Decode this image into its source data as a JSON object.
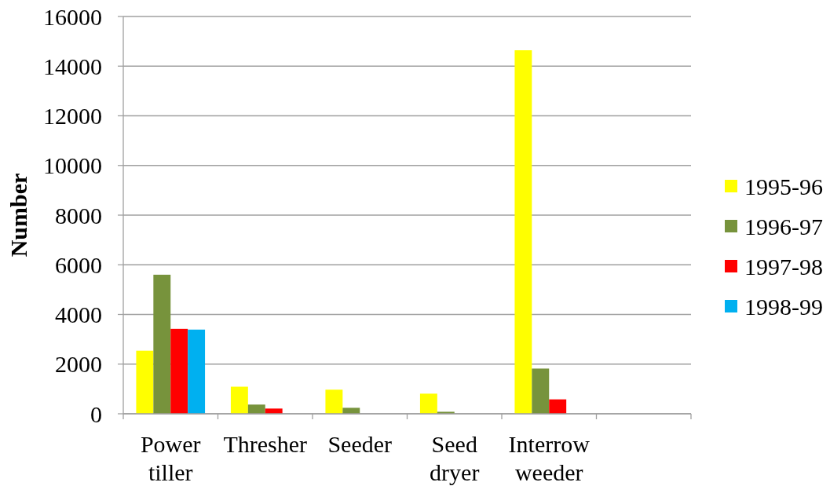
{
  "chart_data": {
    "type": "bar",
    "ylabel": "Number",
    "categories": [
      "Power tiller",
      "Thresher",
      "Seeder",
      "Seed dryer",
      "Interrow weeder",
      null
    ],
    "series": [
      {
        "name": "1995-96",
        "color": "#ffff00",
        "values": [
          2540,
          1090,
          970,
          810,
          14640,
          null
        ]
      },
      {
        "name": "1996-97",
        "color": "#77933c",
        "values": [
          5600,
          370,
          240,
          80,
          1820,
          null
        ]
      },
      {
        "name": "1997-98",
        "color": "#ff0000",
        "values": [
          3420,
          210,
          null,
          null,
          580,
          null
        ]
      },
      {
        "name": "1998-99",
        "color": "#00b0f0",
        "values": [
          3390,
          null,
          null,
          null,
          null,
          null
        ]
      }
    ],
    "ylim": [
      0,
      16000
    ],
    "yticks": [
      0,
      2000,
      4000,
      6000,
      8000,
      10000,
      12000,
      14000,
      16000
    ],
    "grid": "y",
    "legend": "right"
  }
}
